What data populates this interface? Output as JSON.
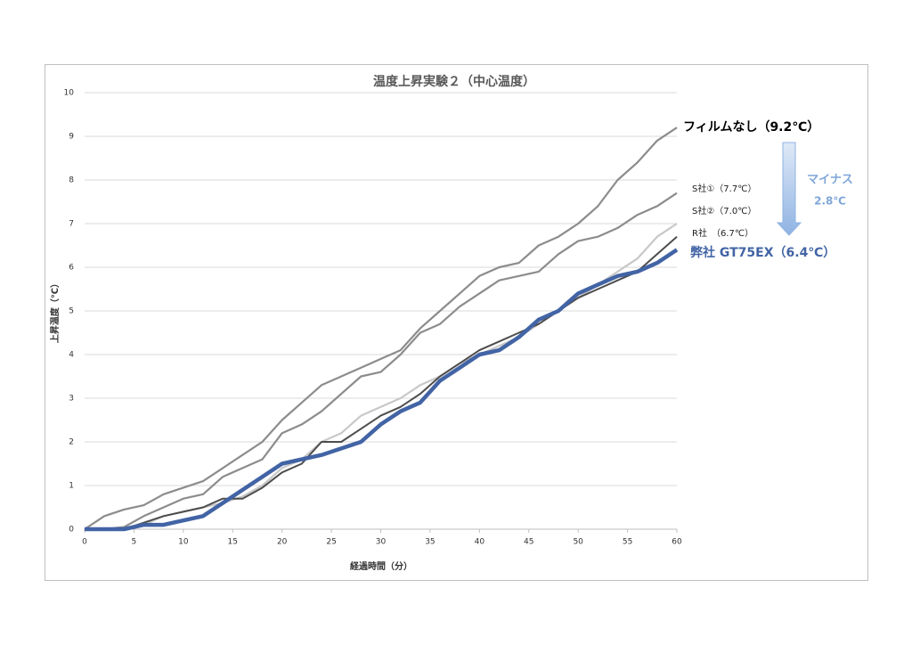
{
  "chart_data": {
    "type": "line",
    "title": "温度上昇実験２（中心温度）",
    "x_label": "経過時間（分）",
    "y_label": "上昇温度（℃）",
    "x": [
      0,
      2,
      4,
      6,
      8,
      10,
      12,
      14,
      16,
      18,
      20,
      22,
      24,
      26,
      28,
      30,
      32,
      34,
      36,
      38,
      40,
      42,
      44,
      46,
      48,
      50,
      52,
      54,
      56,
      58,
      60
    ],
    "series": [
      {
        "name": "フィルムなし（9.2℃）",
        "color": "#8c8c8c",
        "values": [
          0,
          0.3,
          0.45,
          0.55,
          0.8,
          0.95,
          1.1,
          1.4,
          1.7,
          2.0,
          2.5,
          2.9,
          3.3,
          3.5,
          3.7,
          3.9,
          4.1,
          4.6,
          5.0,
          5.4,
          5.8,
          6.0,
          6.1,
          6.5,
          6.7,
          7.0,
          7.4,
          8.0,
          8.4,
          8.9,
          9.2
        ]
      },
      {
        "name": "S社①（7.7℃）",
        "color": "#8c8c8c",
        "values": [
          0,
          0,
          0.05,
          0.3,
          0.5,
          0.7,
          0.8,
          1.2,
          1.4,
          1.6,
          2.2,
          2.4,
          2.7,
          3.1,
          3.5,
          3.6,
          4.0,
          4.5,
          4.7,
          5.1,
          5.4,
          5.7,
          5.8,
          5.9,
          6.3,
          6.6,
          6.7,
          6.9,
          7.2,
          7.4,
          7.7
        ]
      },
      {
        "name": "S社②（7.0℃）",
        "color": "#c8c8c8",
        "values": [
          0,
          0,
          0,
          0.1,
          0.3,
          0.4,
          0.5,
          0.6,
          0.75,
          1.0,
          1.4,
          1.6,
          2.0,
          2.2,
          2.6,
          2.8,
          3.0,
          3.3,
          3.5,
          3.8,
          4.0,
          4.2,
          4.4,
          4.7,
          5.0,
          5.3,
          5.6,
          5.9,
          6.2,
          6.7,
          7.0
        ]
      },
      {
        "name": "R社　（6.7℃）",
        "color": "#4d4d4d",
        "values": [
          0,
          0,
          0,
          0.15,
          0.3,
          0.4,
          0.5,
          0.7,
          0.7,
          0.95,
          1.3,
          1.5,
          2.0,
          2.0,
          2.3,
          2.6,
          2.8,
          3.1,
          3.5,
          3.8,
          4.1,
          4.3,
          4.5,
          4.7,
          5.0,
          5.3,
          5.5,
          5.7,
          5.9,
          6.3,
          6.7
        ]
      },
      {
        "name": "弊社 GT75EX（6.4℃）",
        "color": "#4264a5",
        "values": [
          0,
          0,
          0,
          0.1,
          0.1,
          0.2,
          0.3,
          0.6,
          0.9,
          1.2,
          1.5,
          1.6,
          1.7,
          1.85,
          2.0,
          2.4,
          2.7,
          2.9,
          3.4,
          3.7,
          4.0,
          4.1,
          4.4,
          4.8,
          5.0,
          5.4,
          5.6,
          5.8,
          5.9,
          6.1,
          6.4
        ]
      }
    ],
    "annotations": [
      "マイナス",
      "2.8℃"
    ],
    "annotation_color": "#7fa6d9",
    "xlim": [
      0,
      60
    ],
    "xticks": [
      0,
      5,
      10,
      15,
      20,
      25,
      30,
      35,
      40,
      45,
      50,
      55,
      60
    ],
    "ylim": [
      0,
      10
    ],
    "yticks": [
      0,
      1,
      2,
      3,
      4,
      5,
      6,
      7,
      8,
      9,
      10
    ],
    "grid": true
  }
}
